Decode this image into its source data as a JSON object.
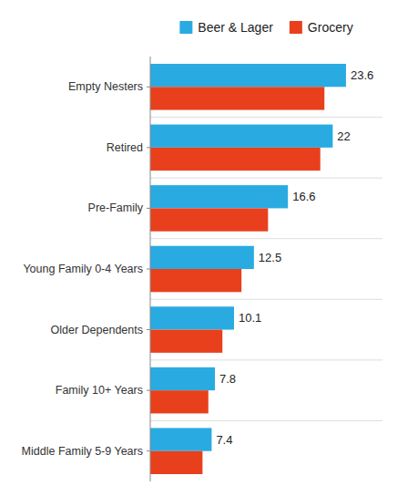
{
  "chart_data": {
    "type": "bar",
    "orientation": "horizontal",
    "categories": [
      "Empty Nesters",
      "Retired",
      "Pre-Family",
      "Young Family 0-4 Years",
      "Older Dependents",
      "Family 10+ Years",
      "Middle Family 5-9 Years"
    ],
    "series": [
      {
        "name": "Beer & Lager",
        "color": "#29ABE2",
        "values": [
          23.6,
          22.0,
          16.6,
          12.5,
          10.1,
          7.8,
          7.4
        ],
        "data_labels": true
      },
      {
        "name": "Grocery",
        "color": "#E8401C",
        "values": [
          21.0,
          20.5,
          14.2,
          11.0,
          8.7,
          7.0,
          6.3
        ]
      }
    ],
    "xlim": [
      0,
      28
    ],
    "xticks": [],
    "tick_labels": "y",
    "legend": "top"
  }
}
